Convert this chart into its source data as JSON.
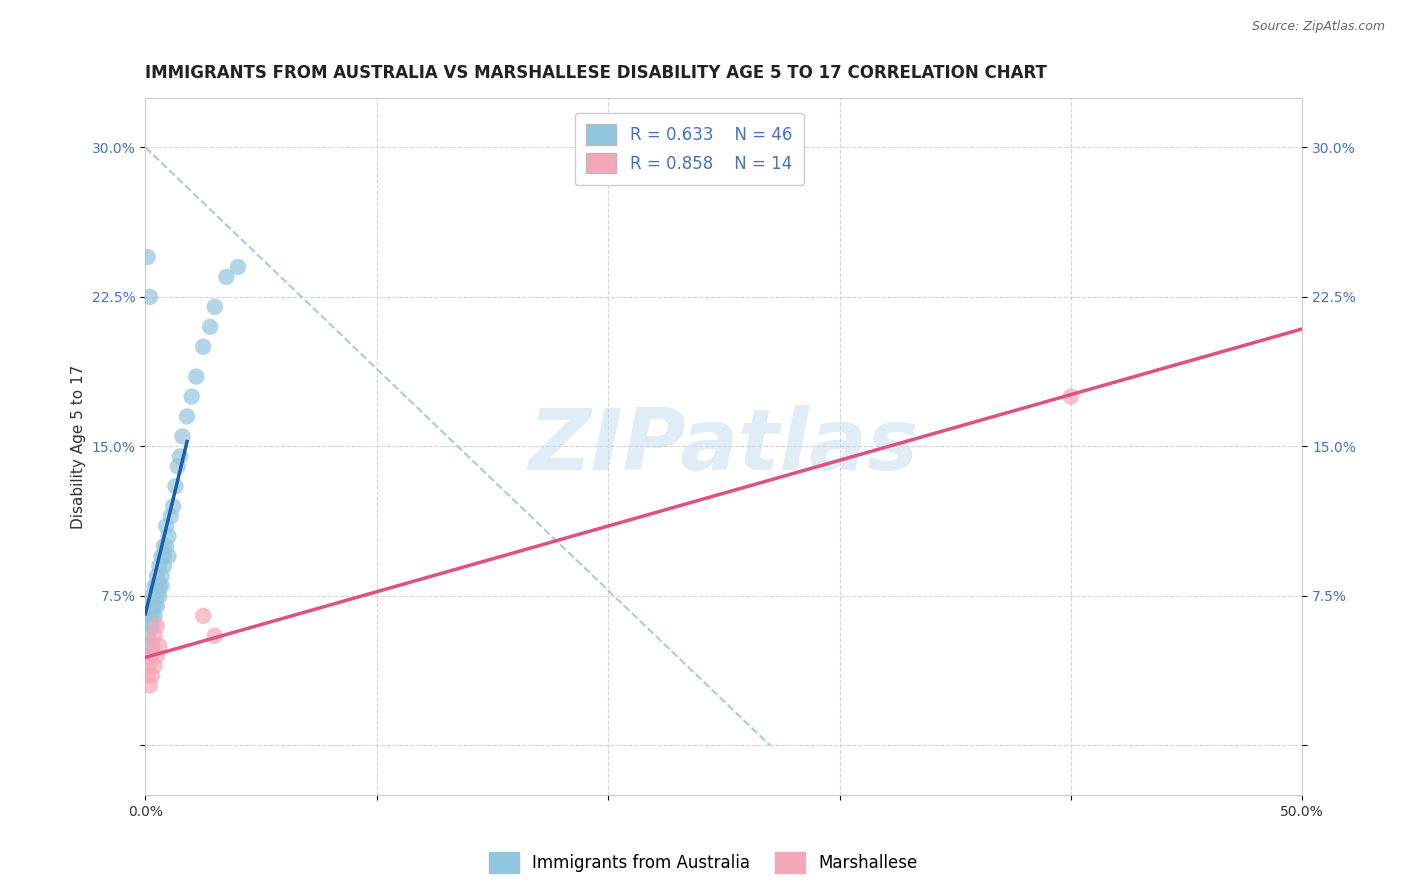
{
  "title": "IMMIGRANTS FROM AUSTRALIA VS MARSHALLESE DISABILITY AGE 5 TO 17 CORRELATION CHART",
  "source": "Source: ZipAtlas.com",
  "ylabel": "Disability Age 5 to 17",
  "xlim": [
    0.0,
    0.5
  ],
  "ylim": [
    -0.025,
    0.325
  ],
  "xticks": [
    0.0,
    0.1,
    0.2,
    0.3,
    0.4,
    0.5
  ],
  "xtick_labels": [
    "0.0%",
    "",
    "",
    "",
    "",
    "50.0%"
  ],
  "yticks": [
    0.0,
    0.075,
    0.15,
    0.225,
    0.3
  ],
  "ytick_labels_left": [
    "",
    "7.5%",
    "15.0%",
    "22.5%",
    "30.0%"
  ],
  "ytick_labels_right": [
    "",
    "7.5%",
    "15.0%",
    "22.5%",
    "30.0%"
  ],
  "color_blue": "#92c5de",
  "color_pink": "#f4a7b9",
  "color_line_blue": "#1a5fa8",
  "color_line_pink": "#e05080",
  "color_dash": "#92bde8",
  "legend_label1": "Immigrants from Australia",
  "legend_label2": "Marshallese",
  "legend_color": "#4472c4",
  "watermark": "ZIPatlas",
  "background_color": "#ffffff",
  "grid_color": "#d5d5d5",
  "grid_style": "--",
  "blue_x": [
    0.001,
    0.001,
    0.001,
    0.002,
    0.002,
    0.002,
    0.003,
    0.003,
    0.003,
    0.003,
    0.004,
    0.004,
    0.004,
    0.005,
    0.005,
    0.005,
    0.005,
    0.006,
    0.006,
    0.006,
    0.007,
    0.007,
    0.007,
    0.008,
    0.008,
    0.008,
    0.009,
    0.009,
    0.01,
    0.01,
    0.011,
    0.012,
    0.013,
    0.014,
    0.015,
    0.016,
    0.018,
    0.02,
    0.022,
    0.025,
    0.028,
    0.03,
    0.035,
    0.04,
    0.001,
    0.002
  ],
  "blue_y": [
    0.045,
    0.05,
    0.055,
    0.05,
    0.06,
    0.065,
    0.06,
    0.065,
    0.07,
    0.075,
    0.065,
    0.07,
    0.08,
    0.07,
    0.075,
    0.08,
    0.085,
    0.075,
    0.08,
    0.09,
    0.08,
    0.085,
    0.095,
    0.09,
    0.095,
    0.1,
    0.1,
    0.11,
    0.095,
    0.105,
    0.115,
    0.12,
    0.13,
    0.14,
    0.145,
    0.155,
    0.165,
    0.175,
    0.185,
    0.2,
    0.21,
    0.22,
    0.235,
    0.24,
    0.245,
    0.225
  ],
  "pink_x": [
    0.001,
    0.001,
    0.002,
    0.002,
    0.003,
    0.003,
    0.004,
    0.004,
    0.005,
    0.005,
    0.006,
    0.4,
    0.025,
    0.03
  ],
  "pink_y": [
    0.035,
    0.04,
    0.03,
    0.045,
    0.035,
    0.05,
    0.04,
    0.055,
    0.045,
    0.06,
    0.05,
    0.175,
    0.065,
    0.055
  ],
  "title_fontsize": 12,
  "axis_label_fontsize": 11,
  "tick_fontsize": 10,
  "legend_fontsize": 12
}
